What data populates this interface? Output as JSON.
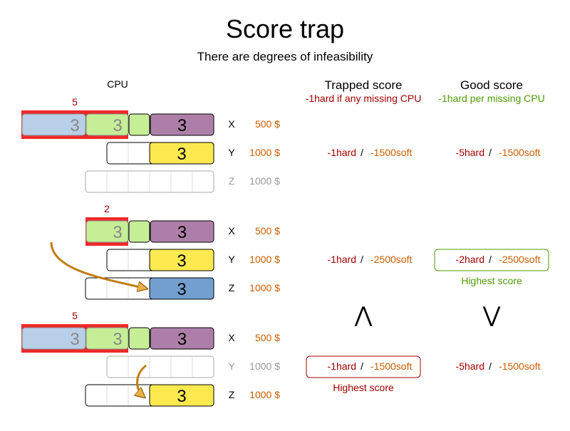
{
  "title": "Score trap",
  "subtitle": "There are degrees of infeasibility",
  "cpu_header": "CPU",
  "trapped": {
    "title": "Trapped score",
    "rule": "-1hard if any missing CPU"
  },
  "good": {
    "title": "Good score",
    "rule": "-1hard per missing CPU"
  },
  "colors": {
    "hard": "#a40000",
    "soft": "#ce5c00",
    "good": "#4e9a06",
    "overload": "#ef2929",
    "blue_light": "#b8cfe8",
    "green": "#c5ee96",
    "purple": "#ad7fa8",
    "yellow": "#fce94f",
    "blue": "#729fcf",
    "arrow": "#e8b04a"
  },
  "scenarios": [
    {
      "overload": "5",
      "computers": [
        {
          "name": "X",
          "cost": "500 $",
          "process": "3",
          "active": true
        },
        {
          "name": "Y",
          "cost": "1000 $",
          "process": "3",
          "active": true
        },
        {
          "name": "Z",
          "cost": "1000 $",
          "active": false
        }
      ],
      "trapped": {
        "hard": "-1hard",
        "sep": "/",
        "soft": "-1500soft"
      },
      "good": {
        "hard": "-5hard",
        "sep": "/",
        "soft": "-1500soft"
      }
    },
    {
      "overload": "2",
      "computers": [
        {
          "name": "X",
          "cost": "500 $",
          "process": "3",
          "active": true
        },
        {
          "name": "Y",
          "cost": "1000 $",
          "process": "3",
          "active": true
        },
        {
          "name": "Z",
          "cost": "1000 $",
          "process": "3",
          "active": true
        }
      ],
      "trapped": {
        "hard": "-1hard",
        "sep": "/",
        "soft": "-2500soft"
      },
      "good": {
        "hard": "-2hard",
        "sep": "/",
        "soft": "-2500soft",
        "highlight": "Highest score"
      }
    },
    {
      "overload": "5",
      "computers": [
        {
          "name": "X",
          "cost": "500 $",
          "process": "3",
          "active": true
        },
        {
          "name": "Y",
          "cost": "1000 $",
          "active": false
        },
        {
          "name": "Z",
          "cost": "1000 $",
          "process": "3",
          "active": true
        }
      ],
      "trapped": {
        "hard": "-1hard",
        "sep": "/",
        "soft": "-1500soft",
        "highlight": "Highest score"
      },
      "good": {
        "hard": "-5hard",
        "sep": "/",
        "soft": "-1500soft"
      }
    }
  ],
  "comparisons": {
    "trapped": "⋀",
    "good": "⋁"
  },
  "process_label": "3"
}
